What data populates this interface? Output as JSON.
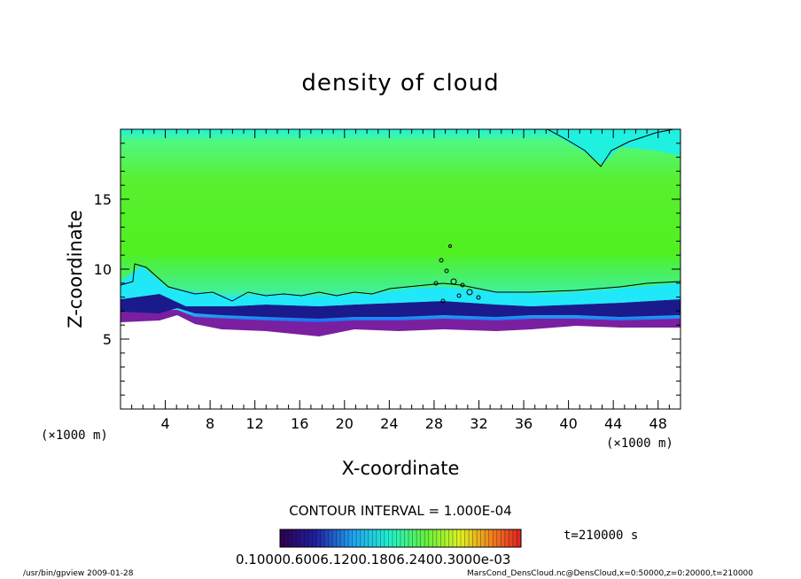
{
  "chart_data": {
    "type": "heatmap",
    "title": "density of cloud",
    "xlabel": "X-coordinate",
    "ylabel": "Z-coordinate",
    "x_unit_left": "(×1000 m)",
    "x_unit_right": "(×1000 m)",
    "xlim": [
      0,
      50
    ],
    "ylim": [
      0,
      20
    ],
    "x_ticks": [
      "4",
      "8",
      "12",
      "16",
      "20",
      "24",
      "28",
      "32",
      "36",
      "40",
      "44",
      "48"
    ],
    "y_ticks": [
      "5",
      "10",
      "15"
    ],
    "contour_interval_text": "CONTOUR INTERVAL = 1.000E-04",
    "time_text": "t=210000  s",
    "colorbar_labels_text": "0.10000.6006.1200.1806.2400.3000e-03",
    "colors": {
      "white": "#ffffff",
      "purple": "#7a1fa0",
      "dark_blue": "#1a1a8c",
      "blue": "#2255e8",
      "cyan": "#20f0f0",
      "light_green": "#60ff80",
      "green": "#4ef020"
    }
  },
  "footer": {
    "left": "/usr/bin/gpview   2009-01-28",
    "right": "MarsCond_DensCloud.nc@DensCloud,x=0:50000,z=0:20000,t=210000"
  }
}
